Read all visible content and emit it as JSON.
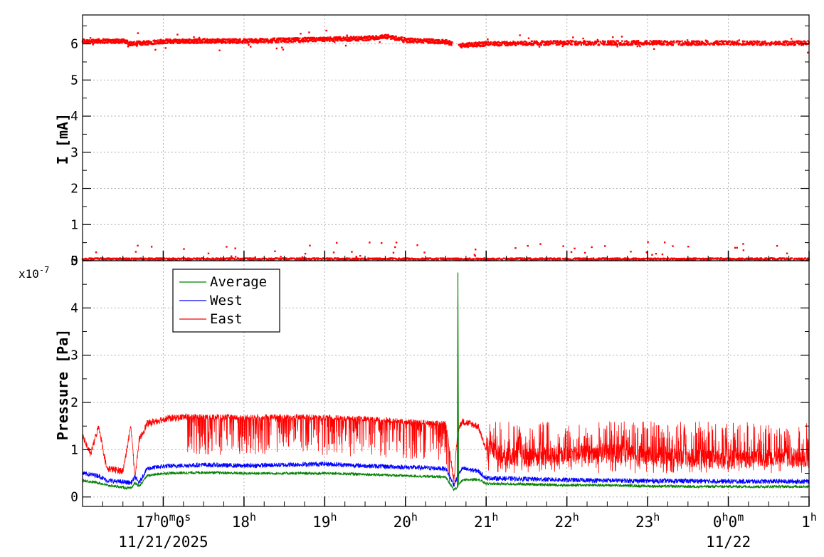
{
  "chart_data": [
    {
      "type": "scatter",
      "ylabel": "I [mA]",
      "ylim": [
        0,
        6.8
      ],
      "y_ticks": [
        "0",
        "1",
        "2",
        "3",
        "4",
        "5",
        "6"
      ],
      "grid": true,
      "series": [
        {
          "color": "#ff0000",
          "band_high": {
            "x": [
              16.0,
              16.5,
              16.6,
              17.0,
              17.5,
              18.0,
              18.5,
              19.0,
              19.5,
              19.8,
              20.0,
              20.5,
              20.65,
              21.0,
              21.5,
              22.0,
              22.5,
              23.0,
              23.5,
              24.0,
              24.5,
              25.0
            ],
            "y": [
              6.08,
              6.08,
              6.0,
              6.07,
              6.08,
              6.08,
              6.1,
              6.12,
              6.15,
              6.2,
              6.1,
              6.06,
              5.95,
              6.0,
              6.02,
              6.03,
              6.02,
              6.03,
              6.02,
              6.03,
              6.02,
              6.02
            ]
          },
          "band_low": {
            "x": [
              16.0,
              17.0,
              18.0,
              19.0,
              20.0,
              21.0,
              22.0,
              23.0,
              24.0,
              25.0
            ],
            "y": [
              0.05,
              0.05,
              0.05,
              0.05,
              0.05,
              0.05,
              0.05,
              0.05,
              0.05,
              0.05
            ]
          }
        }
      ]
    },
    {
      "type": "line",
      "ylabel": "Pressure [Pa]",
      "y_multiplier": "x10",
      "y_exponent": "-7",
      "ylim": [
        -0.2,
        5.0
      ],
      "y_ticks": [
        "0",
        "1",
        "2",
        "3",
        "4",
        "5"
      ],
      "grid": true,
      "legend_position": "top-left",
      "x_ticks": [
        {
          "hour": "17",
          "suffix": "0",
          "suffix2": "0",
          "x": 17,
          "full": true
        },
        {
          "hour": "18",
          "x": 18
        },
        {
          "hour": "19",
          "x": 19
        },
        {
          "hour": "20",
          "x": 20
        },
        {
          "hour": "21",
          "x": 21
        },
        {
          "hour": "22",
          "x": 22
        },
        {
          "hour": "23",
          "x": 23
        },
        {
          "hour": "0",
          "suffix": "0",
          "x": 24,
          "short": true
        },
        {
          "hour": "1",
          "x": 25
        }
      ],
      "x_unit_h": "h",
      "x_unit_m": "m",
      "x_unit_s": "s",
      "date_labels": [
        {
          "text": "11/21/2025",
          "x": 17
        },
        {
          "text": "11/22",
          "x": 24
        }
      ],
      "xlim": [
        16.0,
        25.0
      ],
      "series": [
        {
          "name": "Average",
          "color": "#008000",
          "x": [
            16.0,
            16.2,
            16.3,
            16.6,
            16.65,
            16.7,
            16.8,
            17.0,
            17.5,
            18.0,
            18.5,
            19.0,
            19.5,
            20.0,
            20.5,
            20.6,
            20.64,
            20.65,
            20.66,
            20.7,
            20.9,
            21.0,
            21.5,
            22.0,
            22.5,
            23.0,
            23.5,
            24.0,
            24.5,
            25.0
          ],
          "y": [
            0.35,
            0.3,
            0.25,
            0.18,
            0.3,
            0.22,
            0.45,
            0.5,
            0.52,
            0.5,
            0.5,
            0.5,
            0.48,
            0.45,
            0.42,
            0.15,
            0.2,
            4.75,
            0.25,
            0.35,
            0.38,
            0.28,
            0.27,
            0.25,
            0.25,
            0.23,
            0.22,
            0.22,
            0.22,
            0.22
          ]
        },
        {
          "name": "West",
          "color": "#0000ff",
          "x": [
            16.0,
            16.2,
            16.3,
            16.6,
            16.65,
            16.7,
            16.8,
            17.0,
            17.5,
            18.0,
            18.5,
            19.0,
            19.5,
            20.0,
            20.5,
            20.6,
            20.65,
            20.7,
            20.9,
            21.0,
            21.5,
            22.0,
            22.5,
            23.0,
            23.5,
            24.0,
            24.5,
            25.0
          ],
          "y": [
            0.5,
            0.45,
            0.35,
            0.3,
            0.42,
            0.3,
            0.6,
            0.65,
            0.68,
            0.66,
            0.68,
            0.7,
            0.66,
            0.63,
            0.6,
            0.25,
            0.45,
            0.6,
            0.55,
            0.4,
            0.38,
            0.36,
            0.35,
            0.34,
            0.34,
            0.33,
            0.33,
            0.33
          ]
        },
        {
          "name": "East",
          "color": "#ff0000",
          "x": [
            16.0,
            16.1,
            16.2,
            16.3,
            16.5,
            16.6,
            16.65,
            16.7,
            16.8,
            17.0,
            17.3,
            17.5,
            18.0,
            18.5,
            19.0,
            19.5,
            20.0,
            20.5,
            20.6,
            20.65,
            20.7,
            20.9,
            21.0,
            21.2,
            21.5,
            22.0,
            22.5,
            23.0,
            23.5,
            24.0,
            24.5,
            25.0
          ],
          "y": [
            1.3,
            0.9,
            1.5,
            0.6,
            0.55,
            1.5,
            0.4,
            1.2,
            1.55,
            1.65,
            1.7,
            1.7,
            1.68,
            1.7,
            1.68,
            1.65,
            1.6,
            1.55,
            0.35,
            1.4,
            1.6,
            1.5,
            1.0,
            0.8,
            0.75,
            0.8,
            0.85,
            0.8,
            0.75,
            0.7,
            0.75,
            0.75
          ]
        }
      ]
    }
  ]
}
